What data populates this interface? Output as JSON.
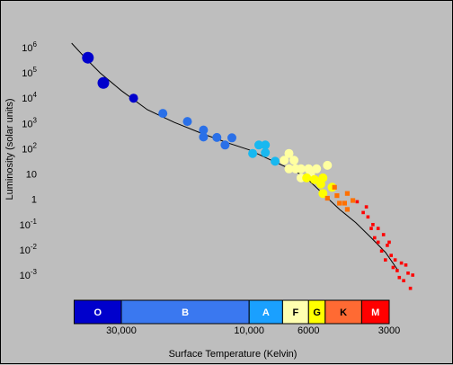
{
  "chart_data": {
    "type": "scatter",
    "title": "",
    "xlabel": "Surface Temperature (Kelvin)",
    "ylabel": "Luminosity (solar units)",
    "x_scale": "log",
    "x_reversed": true,
    "xlim": [
      45000,
      2100
    ],
    "x_ticks": [
      {
        "value": 30000,
        "label": "30,000"
      },
      {
        "value": 10000,
        "label": "10,000"
      },
      {
        "value": 6000,
        "label": "6000"
      },
      {
        "value": 3000,
        "label": "3000"
      }
    ],
    "y_scale": "log",
    "ylim": [
      0.0001,
      3000000
    ],
    "y_ticks": [
      {
        "value": 1000000,
        "base": "10",
        "exp": "6"
      },
      {
        "value": 100000,
        "base": "10",
        "exp": "5"
      },
      {
        "value": 10000,
        "base": "10",
        "exp": "4"
      },
      {
        "value": 1000,
        "base": "10",
        "exp": "3"
      },
      {
        "value": 100,
        "base": "10",
        "exp": "2"
      },
      {
        "value": 10,
        "base": "10",
        "exp": ""
      },
      {
        "value": 1,
        "base": "1",
        "exp": ""
      },
      {
        "value": 0.1,
        "base": "10",
        "exp": "-1"
      },
      {
        "value": 0.01,
        "base": "10",
        "exp": "-2"
      },
      {
        "value": 0.001,
        "base": "10",
        "exp": "-3"
      }
    ],
    "grid": false,
    "legend": "none",
    "spectral_classes": [
      {
        "label": "O",
        "t_start": 45000,
        "t_end": 30000,
        "color": "#0000cc",
        "text_color": "#ffffff"
      },
      {
        "label": "B",
        "t_start": 30000,
        "t_end": 10000,
        "color": "#3a78f0",
        "text_color": "#ffffff"
      },
      {
        "label": "A",
        "t_start": 10000,
        "t_end": 7500,
        "color": "#1aa0ff",
        "text_color": "#ffffff"
      },
      {
        "label": "F",
        "t_start": 7500,
        "t_end": 6000,
        "color": "#ffffb0",
        "text_color": "#000000"
      },
      {
        "label": "G",
        "t_start": 6000,
        "t_end": 5200,
        "color": "#ffff00",
        "text_color": "#000000"
      },
      {
        "label": "K",
        "t_start": 5200,
        "t_end": 3800,
        "color": "#ff6a33",
        "text_color": "#000000"
      },
      {
        "label": "M",
        "t_start": 3800,
        "t_end": 2600,
        "color": "#ff0000",
        "text_color": "#ffffff"
      }
    ],
    "main_sequence_curve": [
      [
        46000,
        1500000
      ],
      [
        41000,
        400000
      ],
      [
        36000,
        100000
      ],
      [
        30000,
        20000
      ],
      [
        24000,
        3500
      ],
      [
        19000,
        1100
      ],
      [
        15000,
        400
      ],
      [
        12000,
        170
      ],
      [
        10000,
        90
      ],
      [
        8500,
        40
      ],
      [
        7200,
        18
      ],
      [
        6200,
        8
      ],
      [
        5400,
        2
      ],
      [
        4600,
        0.4
      ],
      [
        4000,
        0.12
      ],
      [
        3500,
        0.03
      ],
      [
        3100,
        0.008
      ],
      [
        2700,
        0.0015
      ]
    ],
    "series": [
      {
        "color": "#0000cc",
        "marker": "large",
        "points": [
          [
            40000,
            400000
          ],
          [
            35000,
            40000
          ]
        ]
      },
      {
        "color": "#0000cc",
        "marker": "medium",
        "points": [
          [
            27000,
            10000
          ]
        ]
      },
      {
        "color": "#2a70e8",
        "marker": "medium",
        "points": [
          [
            21000,
            2500
          ],
          [
            17000,
            1200
          ],
          [
            14800,
            550
          ],
          [
            14800,
            290
          ],
          [
            13200,
            280
          ],
          [
            12300,
            140
          ],
          [
            11600,
            270
          ]
        ]
      },
      {
        "color": "#18b8f0",
        "marker": "medium",
        "points": [
          [
            9700,
            65
          ],
          [
            9200,
            140
          ],
          [
            8700,
            140
          ],
          [
            8700,
            70
          ],
          [
            8000,
            32
          ]
        ]
      },
      {
        "color": "#ffffa0",
        "marker": "medium",
        "points": [
          [
            7400,
            35
          ],
          [
            7100,
            65
          ],
          [
            7100,
            16
          ],
          [
            6800,
            35
          ],
          [
            6700,
            16
          ],
          [
            6400,
            16
          ],
          [
            6400,
            7
          ],
          [
            6000,
            16
          ],
          [
            5900,
            10
          ],
          [
            5600,
            16
          ],
          [
            5100,
            22
          ]
        ]
      },
      {
        "color": "#ffff00",
        "marker": "medium",
        "points": [
          [
            6100,
            7
          ],
          [
            5700,
            6
          ],
          [
            5400,
            4
          ],
          [
            5300,
            7
          ],
          [
            5300,
            1.7
          ],
          [
            4900,
            3
          ]
        ]
      },
      {
        "color": "#ff7000",
        "marker": "small",
        "points": [
          [
            5100,
            1.1
          ],
          [
            4800,
            3
          ],
          [
            4700,
            1.4
          ],
          [
            4600,
            0.7
          ],
          [
            4400,
            0.7
          ],
          [
            4300,
            1.7
          ],
          [
            4300,
            0.4
          ],
          [
            4100,
            0.9
          ]
        ]
      },
      {
        "color": "#ff0000",
        "marker": "tiny",
        "points": [
          [
            3950,
            0.8
          ],
          [
            3750,
            0.3
          ],
          [
            3650,
            0.5
          ],
          [
            3600,
            0.2
          ],
          [
            3500,
            0.07
          ],
          [
            3450,
            0.1
          ],
          [
            3400,
            0.03
          ],
          [
            3300,
            0.02
          ],
          [
            3300,
            0.07
          ],
          [
            3200,
            0.009
          ],
          [
            3150,
            0.04
          ],
          [
            3100,
            0.004
          ],
          [
            3050,
            0.015
          ],
          [
            3000,
            0.02
          ],
          [
            2950,
            0.006
          ],
          [
            2900,
            0.002
          ],
          [
            2850,
            0.004
          ],
          [
            2800,
            0.0015
          ],
          [
            2750,
            0.0008
          ],
          [
            2700,
            0.003
          ],
          [
            2650,
            0.0006
          ],
          [
            2600,
            0.0025
          ],
          [
            2550,
            0.0012
          ],
          [
            2500,
            0.0003
          ],
          [
            2450,
            0.001
          ]
        ]
      }
    ]
  }
}
